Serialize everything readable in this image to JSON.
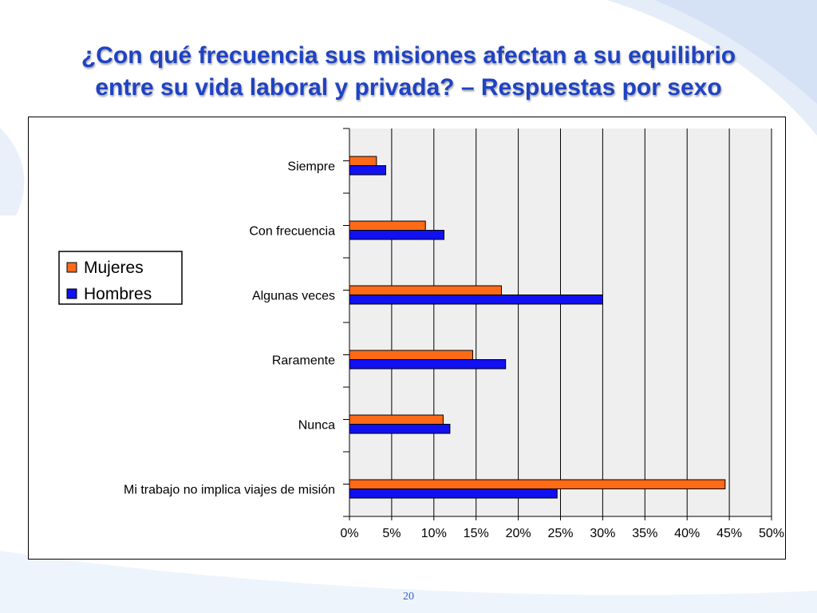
{
  "slide": {
    "title_line1": "¿Con qué frecuencia sus misiones afectan a su equilibrio",
    "title_line2": "entre su vida laboral y privada? – Respuestas por sexo",
    "page_number": "20"
  },
  "colors": {
    "title": "#1f43c4",
    "mujeres": "#ff6a17",
    "hombres": "#1010f0",
    "plot_bg": "#efefef",
    "grid": "#000000"
  },
  "chart_data": {
    "type": "bar",
    "orientation": "horizontal",
    "title": "",
    "xlabel": "",
    "ylabel": "",
    "categories": [
      "Siempre",
      "Con frecuencia",
      "Algunas veces",
      "Raramente",
      "Nunca",
      "Mi trabajo no implica viajes de misión"
    ],
    "series": [
      {
        "name": "Mujeres",
        "values": [
          3.2,
          9.0,
          18.0,
          14.6,
          11.1,
          44.5
        ]
      },
      {
        "name": "Hombres",
        "values": [
          4.3,
          11.2,
          30.0,
          18.5,
          11.9,
          24.6
        ]
      }
    ],
    "xlim": [
      0,
      50
    ],
    "x_ticks": [
      "0%",
      "5%",
      "10%",
      "15%",
      "20%",
      "25%",
      "30%",
      "35%",
      "40%",
      "45%",
      "50%"
    ],
    "x_tick_values": [
      0,
      5,
      10,
      15,
      20,
      25,
      30,
      35,
      40,
      45,
      50
    ],
    "grid": true,
    "legend_position": "left"
  }
}
